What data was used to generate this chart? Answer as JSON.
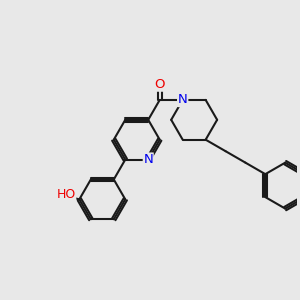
{
  "background_color": "#e8e8e8",
  "bond_color": "#1a1a1a",
  "bond_width": 1.5,
  "atom_colors": {
    "N": "#0000ee",
    "O": "#ee0000",
    "C": "#1a1a1a"
  },
  "font_size": 9.5,
  "fig_size": [
    3.0,
    3.0
  ],
  "dpi": 100,
  "bl": 0.78
}
